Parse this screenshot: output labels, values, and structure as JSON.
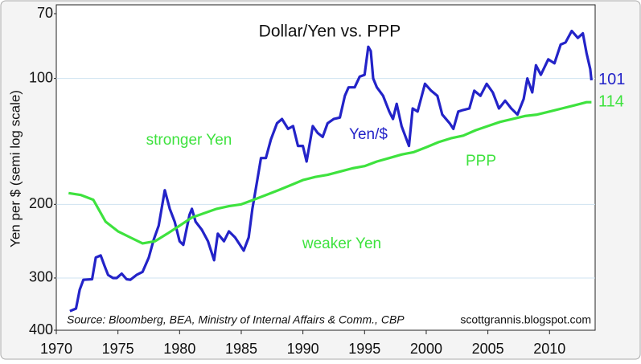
{
  "chart_data": {
    "type": "line",
    "title": "Dollar/Yen vs. PPP",
    "y_label": "Yen per $ (semi log scale)",
    "log_scale": true,
    "y_inverted": true,
    "grid": true,
    "xlim": [
      1970,
      2013.7
    ],
    "xticks": [
      1970,
      1975,
      1980,
      1985,
      1990,
      1995,
      2000,
      2005,
      2010
    ],
    "ylim": [
      70,
      400
    ],
    "yticks": [
      70,
      100,
      200,
      300,
      400
    ],
    "annotations": [
      "stronger Yen",
      "weaker Yen",
      "Source: Bloomberg, BEA, Ministry of Internal Affairs & Comm., CBP",
      "scottgrannis.blogspot.com"
    ],
    "series": [
      {
        "name": "Yen/$",
        "color": "#2323c8",
        "x": [
          1971.1,
          1971.6,
          1971.9,
          1972.2,
          1972.9,
          1973.2,
          1973.6,
          1973.9,
          1974.2,
          1974.6,
          1974.9,
          1975.3,
          1975.7,
          1976.0,
          1976.5,
          1977.0,
          1977.5,
          1977.9,
          1978.3,
          1978.8,
          1979.2,
          1979.6,
          1980.0,
          1980.3,
          1980.8,
          1981.0,
          1981.3,
          1981.8,
          1982.3,
          1982.8,
          1983.1,
          1983.6,
          1984.0,
          1984.5,
          1984.9,
          1985.2,
          1985.6,
          1985.9,
          1986.3,
          1986.6,
          1987.0,
          1987.4,
          1987.9,
          1988.3,
          1988.8,
          1989.2,
          1989.6,
          1990.0,
          1990.3,
          1990.8,
          1991.2,
          1991.6,
          1992.0,
          1992.5,
          1993.0,
          1993.4,
          1993.7,
          1994.2,
          1994.6,
          1995.0,
          1995.3,
          1995.5,
          1995.7,
          1996.0,
          1996.5,
          1997.0,
          1997.3,
          1997.6,
          1998.0,
          1998.6,
          1998.9,
          1999.3,
          1999.9,
          2000.4,
          2000.9,
          2001.3,
          2001.9,
          2002.2,
          2002.6,
          2003.0,
          2003.5,
          2003.9,
          2004.4,
          2004.9,
          2005.4,
          2005.9,
          2006.4,
          2006.9,
          2007.4,
          2007.9,
          2008.2,
          2008.6,
          2008.9,
          2009.3,
          2009.9,
          2010.4,
          2010.9,
          2011.3,
          2011.8,
          2012.3,
          2012.7,
          2013.0,
          2013.3,
          2013.4
        ],
        "values": [
          360,
          355,
          320,
          303,
          302,
          268,
          265,
          280,
          295,
          300,
          300,
          293,
          302,
          303,
          295,
          290,
          268,
          243,
          225,
          185,
          205,
          220,
          245,
          250,
          212,
          205,
          220,
          230,
          245,
          272,
          235,
          245,
          232,
          240,
          250,
          258,
          240,
          205,
          175,
          155,
          155,
          140,
          128,
          125,
          132,
          130,
          145,
          145,
          158,
          130,
          135,
          138,
          128,
          125,
          124,
          110,
          105,
          105,
          99,
          98,
          84,
          86,
          100,
          105,
          110,
          120,
          125,
          115,
          130,
          145,
          118,
          120,
          103,
          107,
          110,
          122,
          128,
          132,
          120,
          119,
          118,
          107,
          110,
          103,
          108,
          118,
          113,
          118,
          122,
          112,
          100,
          108,
          93,
          98,
          90,
          92,
          83,
          82,
          77,
          80,
          78,
          87,
          95,
          101
        ]
      },
      {
        "name": "PPP",
        "color": "#3ee23e",
        "x": [
          1971,
          1972,
          1973,
          1974,
          1975,
          1976,
          1977,
          1978,
          1979,
          1980,
          1981,
          1982,
          1983,
          1984,
          1985,
          1986,
          1987,
          1988,
          1989,
          1990,
          1991,
          1992,
          1993,
          1994,
          1995,
          1996,
          1997,
          1998,
          1999,
          2000,
          2001,
          2002,
          2003,
          2004,
          2005,
          2006,
          2007,
          2008,
          2009,
          2010,
          2011,
          2012,
          2013,
          2013.4
        ],
        "values": [
          188,
          190,
          195,
          220,
          232,
          240,
          248,
          245,
          235,
          225,
          215,
          210,
          205,
          202,
          200,
          195,
          190,
          185,
          180,
          175,
          172,
          170,
          167,
          164,
          162,
          158,
          155,
          152,
          150,
          146,
          142,
          139,
          137,
          133,
          130,
          127,
          125,
          123,
          122,
          120,
          118,
          116,
          114,
          114
        ]
      }
    ]
  }
}
